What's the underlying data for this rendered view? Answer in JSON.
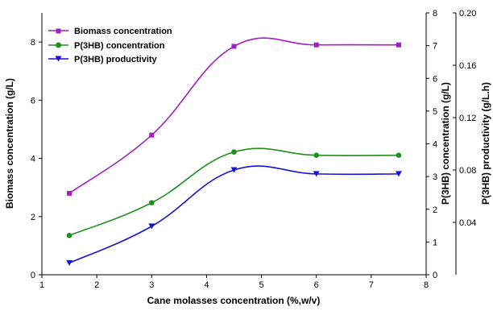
{
  "chart_data": {
    "type": "line",
    "title": "",
    "xlabel": "Cane molasses concentration (%,w/v)",
    "xlim": [
      1,
      8
    ],
    "xticks": [
      "1",
      "2",
      "3",
      "4",
      "5",
      "6",
      "7",
      "8"
    ],
    "axes": {
      "left": {
        "label": "Biomass concentration (g/L)",
        "ylim": [
          0,
          9
        ],
        "ticks": [
          "0",
          "2",
          "4",
          "6",
          "8"
        ]
      },
      "right1": {
        "label": "P(3HB) concentration (g/L)",
        "ylim": [
          0,
          8
        ],
        "ticks": [
          "0",
          "1",
          "2",
          "3",
          "4",
          "5",
          "6",
          "7",
          "8"
        ]
      },
      "right2": {
        "label": "P(3HB) productivity (g/L.h)",
        "ylim": [
          0,
          0.2
        ],
        "ticks": [
          "0.04",
          "0.08",
          "0.12",
          "0.16",
          "0.20"
        ]
      }
    },
    "legend_position": "top-left",
    "grid": false,
    "series": [
      {
        "name": "Biomass concentration",
        "axis": "left",
        "color": "#a31fc2",
        "marker": "square",
        "x": [
          1.5,
          3,
          4.5,
          6,
          7.5
        ],
        "values": [
          2.8,
          4.8,
          7.85,
          7.9,
          7.9
        ]
      },
      {
        "name": "P(3HB) concentration",
        "axis": "right1",
        "color": "#1f8f1f",
        "marker": "circle",
        "x": [
          1.5,
          3,
          4.5,
          6,
          7.5
        ],
        "values": [
          1.2,
          2.2,
          3.75,
          3.65,
          3.65
        ]
      },
      {
        "name": "P(3HB) productivity",
        "axis": "right2",
        "color": "#1414d8",
        "marker": "triangle-down",
        "x": [
          1.5,
          3,
          4.5,
          6,
          7.5
        ],
        "values": [
          0.009,
          0.037,
          0.08,
          0.077,
          0.077
        ]
      }
    ]
  }
}
